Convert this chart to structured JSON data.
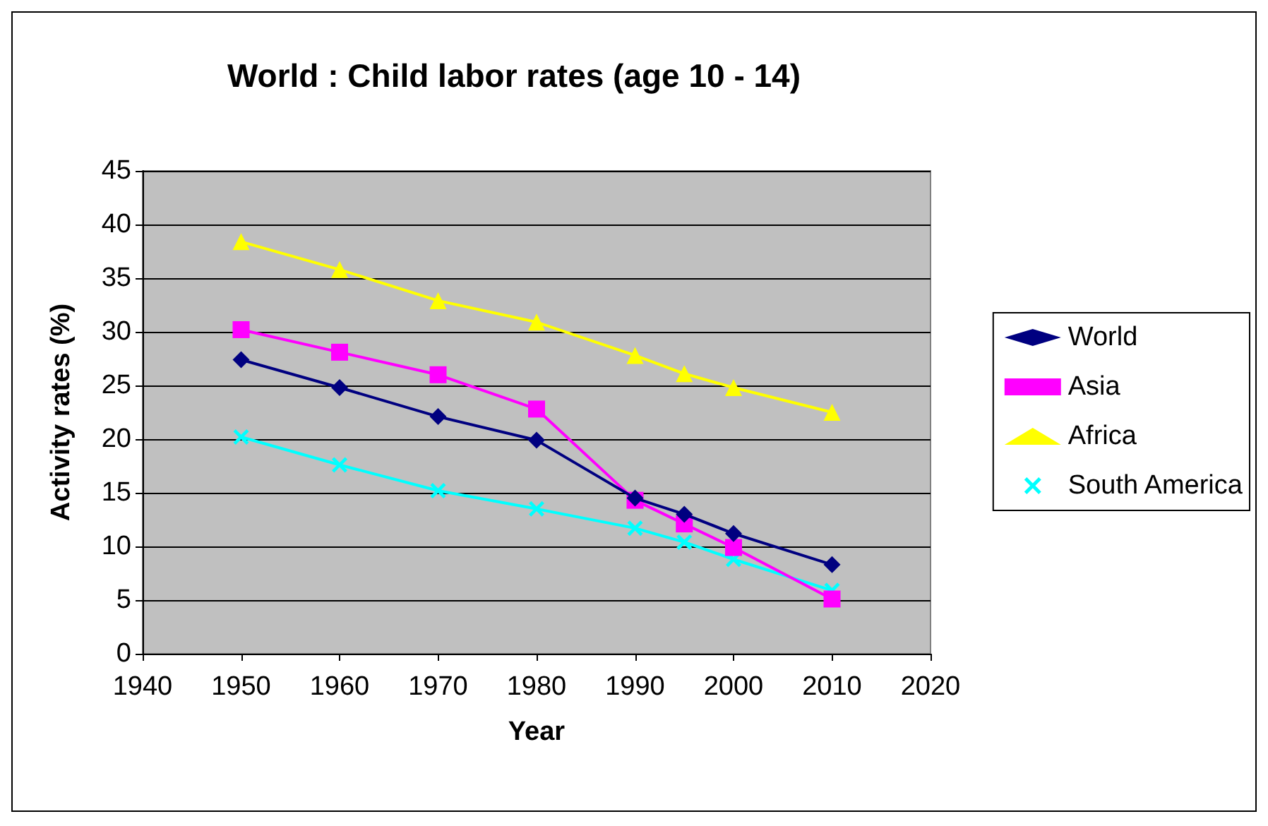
{
  "chart_data": {
    "type": "line",
    "title": "World : Child labor rates (age 10 - 14)",
    "xlabel": "Year",
    "ylabel": "Activity rates (%)",
    "x": [
      1950,
      1960,
      1970,
      1980,
      1990,
      1995,
      2000,
      2010
    ],
    "series": [
      {
        "name": "World",
        "color": "#000080",
        "marker": "diamond",
        "values": [
          27.4,
          24.8,
          22.1,
          19.9,
          14.5,
          13,
          11.2,
          8.3
        ]
      },
      {
        "name": "Asia",
        "color": "#ff00ff",
        "marker": "square",
        "values": [
          30.2,
          28.1,
          26,
          22.8,
          14.3,
          12.1,
          9.9,
          5.1
        ]
      },
      {
        "name": "Africa",
        "color": "#ffff00",
        "marker": "triangle",
        "values": [
          38.4,
          35.8,
          32.9,
          30.9,
          27.8,
          26.1,
          24.8,
          22.5
        ]
      },
      {
        "name": "South America",
        "color": "#00ffff",
        "marker": "cross",
        "values": [
          20.2,
          17.6,
          15.2,
          13.5,
          11.7,
          10.4,
          8.8,
          5.9
        ]
      }
    ],
    "xlim": [
      1940,
      2020
    ],
    "xticks": [
      1940,
      1950,
      1960,
      1970,
      1980,
      1990,
      2000,
      2010,
      2020
    ],
    "ylim": [
      0,
      45
    ],
    "yticks": [
      0,
      5,
      10,
      15,
      20,
      25,
      30,
      35,
      40,
      45
    ],
    "grid": "y",
    "legend": "right",
    "line_style": "solid"
  }
}
